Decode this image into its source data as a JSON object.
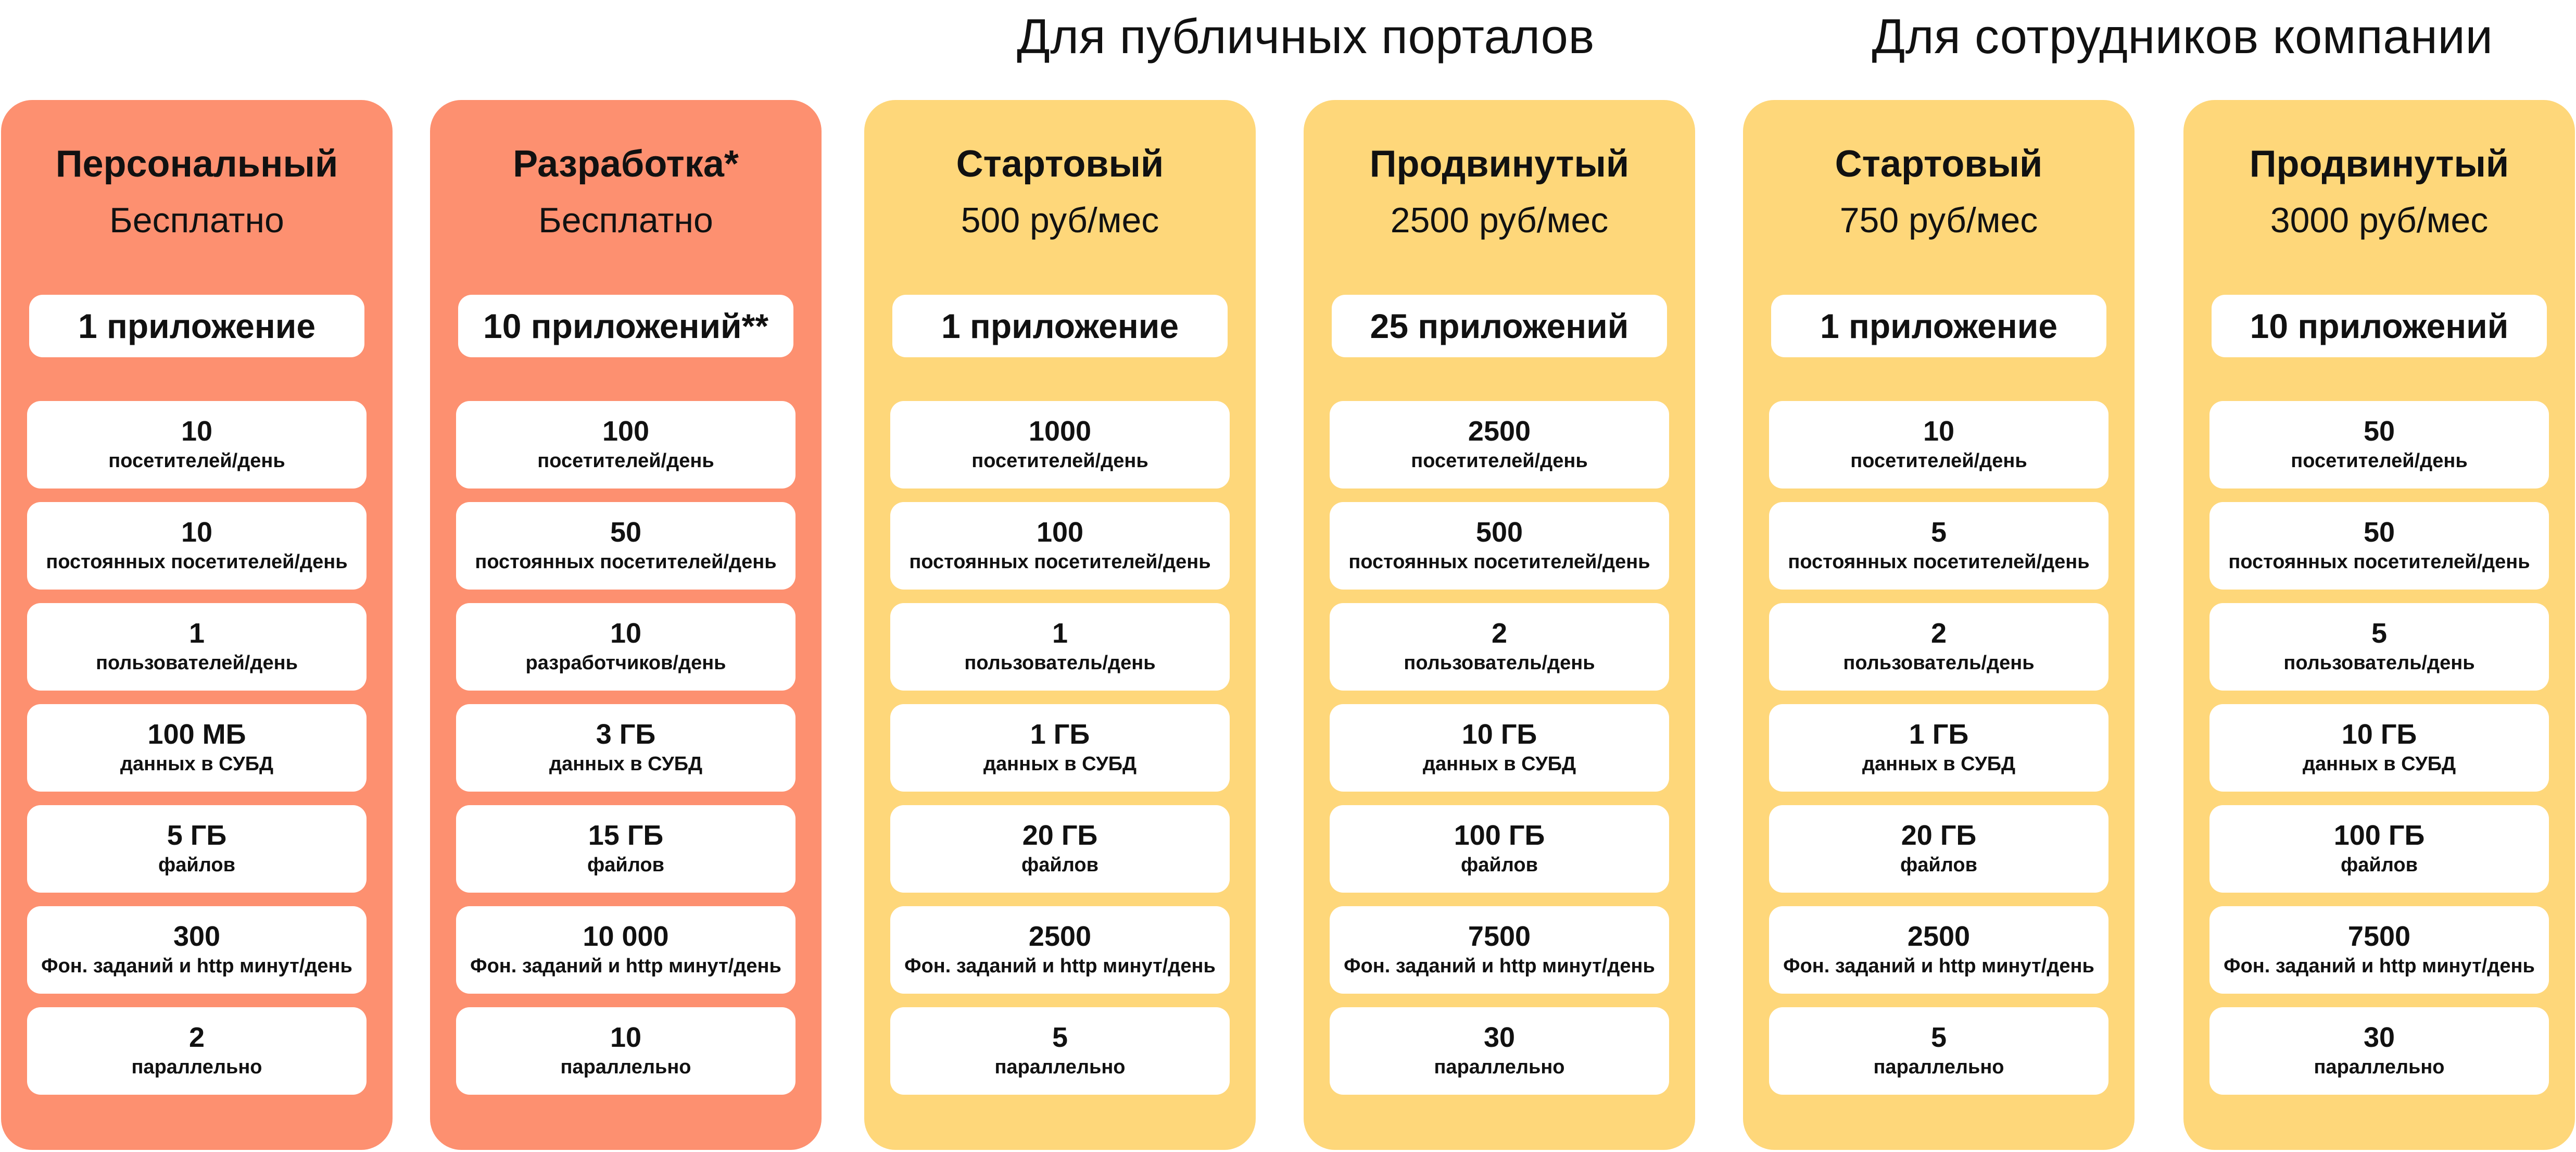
{
  "groups": [
    {
      "title": "Для публичных порталов"
    },
    {
      "title": "Для сотрудников компании"
    }
  ],
  "colors": {
    "orange": "#FD9070",
    "yellow": "#FED77A",
    "box": "#FFFFFF"
  },
  "plans": [
    {
      "name": "Персональный",
      "price": "Бесплатно",
      "apps": "1 приложение",
      "features": [
        {
          "value": "10",
          "label": "посетителей/день"
        },
        {
          "value": "10",
          "label": "постоянных посетителей/день"
        },
        {
          "value": "1",
          "label": "пользователей/день"
        },
        {
          "value": "100 МБ",
          "label": "данных в СУБД"
        },
        {
          "value": "5 ГБ",
          "label": "файлов"
        },
        {
          "value": "300",
          "label": "Фон. заданий и http минут/день"
        },
        {
          "value": "2",
          "label": "параллельно"
        }
      ]
    },
    {
      "name": "Разработка*",
      "price": "Бесплатно",
      "apps": "10 приложений**",
      "features": [
        {
          "value": "100",
          "label": "посетителей/день"
        },
        {
          "value": "50",
          "label": "постоянных посетителей/день"
        },
        {
          "value": "10",
          "label": "разработчиков/день"
        },
        {
          "value": "3 ГБ",
          "label": "данных в СУБД"
        },
        {
          "value": "15 ГБ",
          "label": "файлов"
        },
        {
          "value": "10 000",
          "label": "Фон. заданий и http минут/день"
        },
        {
          "value": "10",
          "label": "параллельно"
        }
      ]
    },
    {
      "name": "Стартовый",
      "price": "500 руб/мес",
      "apps": "1 приложение",
      "features": [
        {
          "value": "1000",
          "label": "посетителей/день"
        },
        {
          "value": "100",
          "label": "постоянных посетителей/день"
        },
        {
          "value": "1",
          "label": "пользователь/день"
        },
        {
          "value": "1 ГБ",
          "label": "данных в СУБД"
        },
        {
          "value": "20 ГБ",
          "label": "файлов"
        },
        {
          "value": "2500",
          "label": "Фон. заданий и http минут/день"
        },
        {
          "value": "5",
          "label": "параллельно"
        }
      ]
    },
    {
      "name": "Продвинутый",
      "price": "2500 руб/мес",
      "apps": "25 приложений",
      "features": [
        {
          "value": "2500",
          "label": "посетителей/день"
        },
        {
          "value": "500",
          "label": "постоянных посетителей/день"
        },
        {
          "value": "2",
          "label": "пользователь/день"
        },
        {
          "value": "10 ГБ",
          "label": "данных в СУБД"
        },
        {
          "value": "100 ГБ",
          "label": "файлов"
        },
        {
          "value": "7500",
          "label": "Фон. заданий и http минут/день"
        },
        {
          "value": "30",
          "label": "параллельно"
        }
      ]
    },
    {
      "name": "Стартовый",
      "price": "750 руб/мес",
      "apps": "1 приложение",
      "features": [
        {
          "value": "10",
          "label": "посетителей/день"
        },
        {
          "value": "5",
          "label": "постоянных посетителей/день"
        },
        {
          "value": "2",
          "label": "пользователь/день"
        },
        {
          "value": "1 ГБ",
          "label": "данных в СУБД"
        },
        {
          "value": "20 ГБ",
          "label": "файлов"
        },
        {
          "value": "2500",
          "label": "Фон. заданий и http минут/день"
        },
        {
          "value": "5",
          "label": "параллельно"
        }
      ]
    },
    {
      "name": "Продвинутый",
      "price": "3000 руб/мес",
      "apps": "10 приложений",
      "features": [
        {
          "value": "50",
          "label": "посетителей/день"
        },
        {
          "value": "50",
          "label": "постоянных посетителей/день"
        },
        {
          "value": "5",
          "label": "пользователь/день"
        },
        {
          "value": "10 ГБ",
          "label": "данных в СУБД"
        },
        {
          "value": "100 ГБ",
          "label": "файлов"
        },
        {
          "value": "7500",
          "label": "Фон. заданий и http минут/день"
        },
        {
          "value": "30",
          "label": "параллельно"
        }
      ]
    }
  ]
}
